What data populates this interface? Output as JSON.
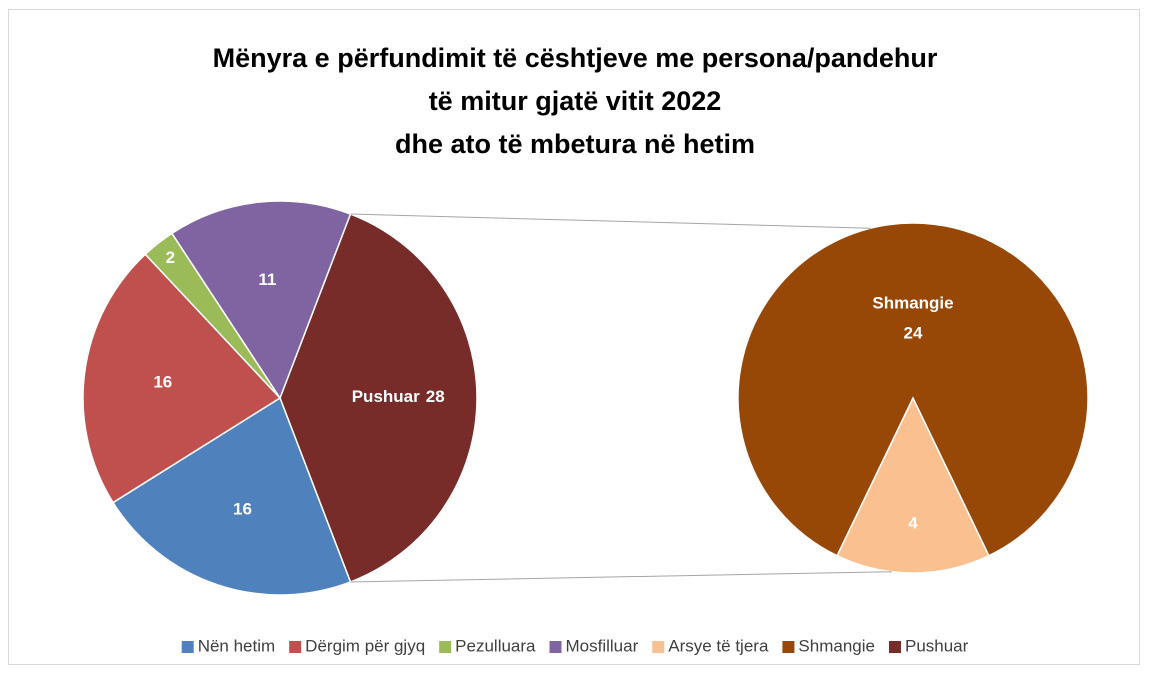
{
  "chart_data": {
    "type": "pie-of-pie",
    "title": [
      "Mënyra e përfundimit të cështjeve me persona/pandehur",
      "të mitur gjatë vitit 2022",
      "dhe ato të mbetura në hetim"
    ],
    "slices": [
      {
        "name": "Nën hetim",
        "color": "#4f81bd",
        "value": 16,
        "pie": "main"
      },
      {
        "name": "Dërgim për gjyq",
        "color": "#c0504d",
        "value": 16,
        "pie": "main"
      },
      {
        "name": "Pezulluara",
        "color": "#9bbb59",
        "value": 2,
        "pie": "main"
      },
      {
        "name": "Mosfilluar",
        "color": "#8064a2",
        "value": 11,
        "pie": "main"
      },
      {
        "name": "Arsye të tjera",
        "color": "#fac090",
        "value": 4,
        "pie": "secondary"
      },
      {
        "name": "Shmangie",
        "color": "#974706",
        "value": 24,
        "pie": "secondary",
        "show_name_in_label": true
      },
      {
        "name": "Pushuar",
        "color": "#772c2a",
        "value": 28,
        "pie": "main",
        "aggregate": true,
        "show_name_in_label": true
      }
    ],
    "legend": "bottom"
  }
}
